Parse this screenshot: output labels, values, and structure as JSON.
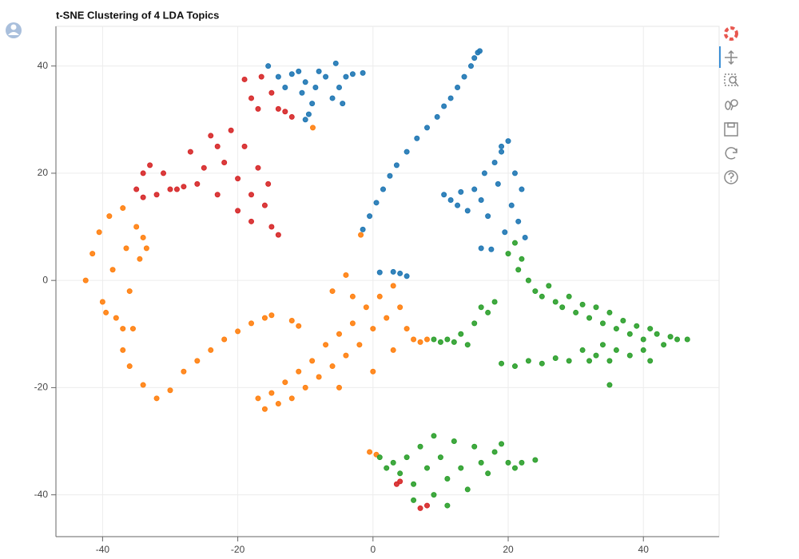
{
  "chart_data": {
    "type": "scatter",
    "title": "t-SNE Clustering of 4 LDA Topics",
    "xlim": [
      -46.9,
      51.2
    ],
    "ylim": [
      -47.8,
      47.4
    ],
    "xticks": [
      -40,
      -20,
      0,
      20,
      40
    ],
    "yticks": [
      -40,
      -20,
      0,
      20,
      40
    ],
    "grid": true,
    "series": [
      {
        "color": "#1f77b4",
        "x": [
          -15.5,
          -14,
          -13,
          -12,
          -11,
          -10.5,
          -10,
          -9,
          -9.5,
          -8.5,
          -8,
          -7,
          -6,
          -5.5,
          -5,
          -4.5,
          -4,
          -3,
          -1.5,
          -10,
          -1.5,
          -0.5,
          0.5,
          1.5,
          2.5,
          3.5,
          5,
          6.5,
          8,
          9.5,
          10.5,
          11.5,
          12.5,
          13.5,
          14.5,
          15,
          15.5,
          15.8,
          10.5,
          11.5,
          12.5,
          13,
          14,
          15,
          16,
          16.5,
          17,
          18,
          18.5,
          19,
          19.5,
          20,
          20.5,
          21,
          21.5,
          22,
          22.5,
          16,
          17.5,
          19,
          1,
          3,
          4,
          5
        ],
        "values": [
          40,
          38,
          36,
          38.5,
          39,
          35,
          37,
          33,
          31,
          36,
          39,
          38,
          34,
          40.5,
          36,
          33,
          38,
          38.5,
          38.7,
          30,
          9.5,
          12,
          14.5,
          17,
          19.5,
          21.5,
          24,
          26.5,
          28.5,
          30.5,
          32.5,
          34,
          36,
          38,
          40,
          41.5,
          42.5,
          42.8,
          16,
          15,
          14,
          16.5,
          13,
          17,
          15,
          20,
          12,
          22,
          18,
          25,
          9,
          26,
          14,
          20,
          11,
          17,
          8,
          6,
          5.8,
          24,
          1.5,
          1.6,
          1.3,
          0.8
        ]
      },
      {
        "color": "#d62728",
        "x": [
          -19,
          -18,
          -17,
          -16.5,
          -15,
          -14,
          -13,
          -12,
          -27,
          -26,
          -25,
          -24,
          -23,
          -22,
          -21,
          -20,
          -20,
          -19,
          -18,
          -18,
          -17,
          -16,
          -15.5,
          -15,
          -14,
          -23,
          -35,
          -34,
          -33,
          -32,
          -31,
          -30,
          -29,
          -28,
          -34,
          3.5,
          4,
          7,
          8
        ],
        "values": [
          37.5,
          34,
          32,
          38,
          35,
          32,
          31.5,
          30.5,
          24,
          18,
          21,
          27,
          16,
          22,
          28,
          19,
          13,
          25,
          16,
          11,
          21,
          14,
          18,
          10,
          8.5,
          25,
          17,
          20,
          21.5,
          16,
          20,
          17,
          17,
          17.5,
          15.5,
          -38,
          -37.5,
          -42.5,
          -42
        ]
      },
      {
        "color": "#ff7f0e",
        "x": [
          -42.5,
          -41.5,
          -40.5,
          -40,
          -39,
          -38.5,
          -38,
          -37,
          -37,
          -36.5,
          -36,
          -35.5,
          -35,
          -34.5,
          -34,
          -39.5,
          -33.5,
          -37,
          -36,
          -34,
          -32,
          -30,
          -28,
          -26,
          -24,
          -22,
          -20,
          -18,
          -16,
          -15,
          -12,
          -11,
          -17,
          -16,
          -15,
          -14,
          -13,
          -12,
          -11,
          -10,
          -9,
          -8,
          -7,
          -6,
          -5,
          -4,
          -3,
          -2,
          -1,
          0,
          1,
          2,
          3,
          4,
          -4,
          -6,
          -3,
          5,
          6,
          7,
          8,
          3,
          0,
          -5,
          -1.8,
          -8.9,
          -0.5,
          0.5
        ],
        "values": [
          0,
          5,
          9,
          -4,
          12,
          2,
          -7,
          13.5,
          -9,
          6,
          -2,
          -9,
          10,
          4,
          8,
          -6,
          6,
          -13,
          -16,
          -19.5,
          -22,
          -20.5,
          -17,
          -15,
          -13,
          -11,
          -9.5,
          -8,
          -7,
          -6.5,
          -7.5,
          -8.5,
          -22,
          -24,
          -21,
          -23,
          -19,
          -22,
          -17,
          -20,
          -15,
          -18,
          -12,
          -16,
          -10,
          -14,
          -8,
          -12,
          -5,
          -9,
          -3,
          -7,
          -1,
          -5,
          1,
          -2,
          -3,
          -9,
          -11,
          -11.5,
          -11,
          -13,
          -17,
          -20,
          8.5,
          28.5,
          -32,
          -32.5
        ]
      },
      {
        "color": "#2ca02c",
        "x": [
          20,
          21,
          21.5,
          22,
          23,
          24,
          25,
          26,
          27,
          28,
          29,
          30,
          31,
          32,
          33,
          34,
          35,
          36,
          37,
          38,
          39,
          40,
          41,
          42,
          43,
          44,
          45,
          46.5,
          19,
          21,
          23,
          25,
          27,
          29,
          31,
          32,
          33,
          34,
          35,
          36,
          38,
          40,
          41,
          35,
          9,
          10,
          11,
          12,
          13,
          14,
          15,
          16,
          17,
          18,
          1,
          2,
          3,
          4,
          5,
          6,
          7,
          8,
          9,
          9,
          10,
          11,
          12,
          13,
          14,
          15,
          16,
          17,
          18,
          19,
          20,
          21,
          22,
          24,
          11,
          6
        ],
        "values": [
          5,
          7,
          2,
          4,
          0,
          -2,
          -3,
          -1,
          -4,
          -5,
          -3,
          -6,
          -4.5,
          -7,
          -5,
          -8,
          -6,
          -9,
          -7.5,
          -10,
          -8.5,
          -11,
          -9,
          -10,
          -12,
          -10.5,
          -11,
          -11,
          -15.5,
          -16,
          -15,
          -15.5,
          -14.5,
          -15,
          -13,
          -15,
          -14,
          -12,
          -15,
          -13,
          -14,
          -13,
          -15,
          -19.5,
          -11,
          -11.5,
          -11,
          -11.5,
          -10,
          -12,
          -8,
          -5,
          -6,
          -4,
          -33,
          -35,
          -34,
          -36,
          -33,
          -38,
          -31,
          -35,
          -29,
          -40,
          -33,
          -37,
          -30,
          -35,
          -39,
          -31,
          -34,
          -36,
          -32,
          -30.5,
          -34,
          -35,
          -34,
          -33.5,
          -42,
          -41
        ]
      }
    ]
  }
}
